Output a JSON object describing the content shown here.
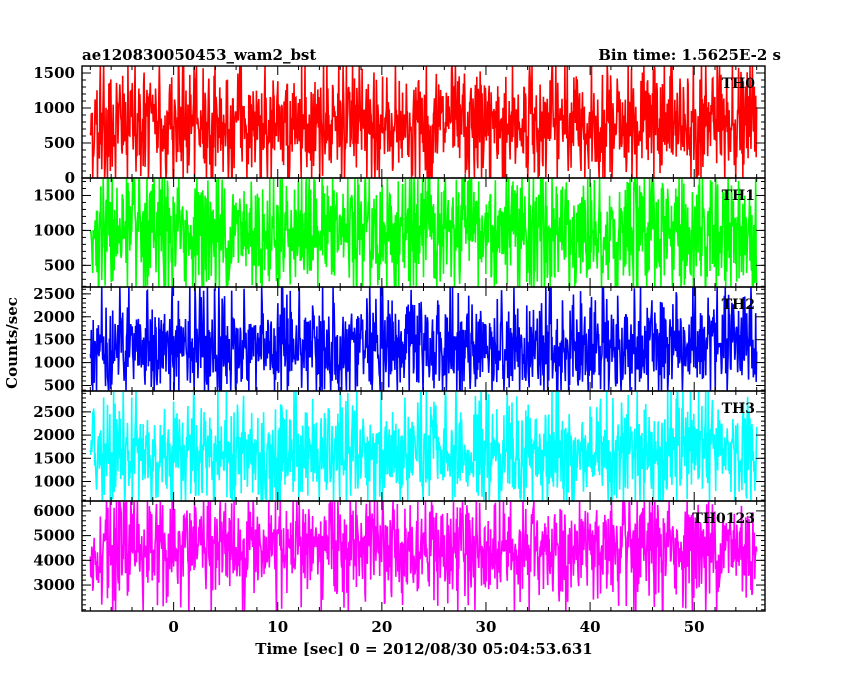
{
  "chart_data": {
    "type": "line",
    "title": "ae120830050453_wam2_bst",
    "subtitle": "Bin time: 1.5625E-2 s",
    "xlabel": "Time [sec] 0 = 2012/08/30 05:04:53.631",
    "ylabel": "Counts/sec",
    "xlim": [
      -8.8,
      56.8
    ],
    "data_x_range": [
      -8.0,
      56.0
    ],
    "x_ticks": [
      0,
      10,
      20,
      30,
      40,
      50
    ],
    "x_tick_labels": [
      "0",
      "10",
      "20",
      "30",
      "40",
      "50"
    ],
    "grid": false,
    "panels": [
      {
        "name": "TH0",
        "color": "#ff0000",
        "ylim": [
          0,
          1600
        ],
        "y_ticks": [
          0,
          500,
          1000,
          1500
        ],
        "y_tick_labels": [
          "0",
          "500",
          "1000",
          "1500"
        ],
        "series_summary": {
          "mean": 770,
          "typical_low": 150,
          "typical_high": 1400,
          "min": 0,
          "max": 1600
        }
      },
      {
        "name": "TH1",
        "color": "#00ff00",
        "ylim": [
          190,
          1750
        ],
        "y_ticks": [
          500,
          1000,
          1500
        ],
        "y_tick_labels": [
          "500",
          "1000",
          "1500"
        ],
        "series_summary": {
          "mean": 970,
          "typical_low": 280,
          "typical_high": 1650,
          "min": 190,
          "max": 1750
        }
      },
      {
        "name": "TH2",
        "color": "#0000ff",
        "ylim": [
          380,
          2650
        ],
        "y_ticks": [
          500,
          1000,
          1500,
          2000,
          2500
        ],
        "y_tick_labels": [
          "500",
          "1000",
          "1500",
          "2000",
          "2500"
        ],
        "series_summary": {
          "mean": 1330,
          "typical_low": 550,
          "typical_high": 2300,
          "min": 380,
          "max": 2650
        }
      },
      {
        "name": "TH3",
        "color": "#00ffff",
        "ylim": [
          580,
          2950
        ],
        "y_ticks": [
          1000,
          1500,
          2000,
          2500
        ],
        "y_tick_labels": [
          "1000",
          "1500",
          "2000",
          "2500"
        ],
        "series_summary": {
          "mean": 1620,
          "typical_low": 800,
          "typical_high": 2600,
          "min": 580,
          "max": 2950
        }
      },
      {
        "name": "TH0123",
        "color": "#ff00ff",
        "ylim": [
          1950,
          6400
        ],
        "y_ticks": [
          3000,
          4000,
          5000,
          6000
        ],
        "y_tick_labels": [
          "3000",
          "4000",
          "5000",
          "6000"
        ],
        "series_summary": {
          "mean": 4500,
          "typical_low": 2800,
          "typical_high": 6000,
          "min": 1950,
          "max": 6400
        }
      }
    ]
  }
}
